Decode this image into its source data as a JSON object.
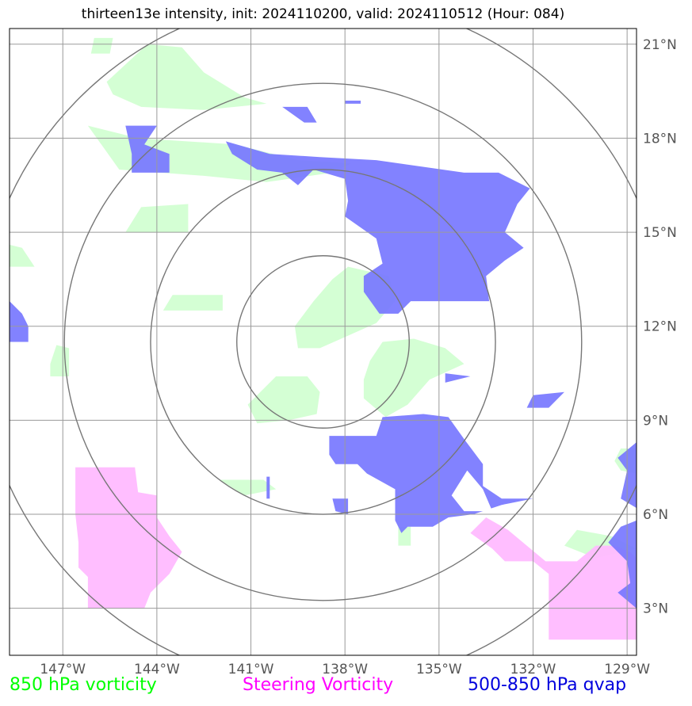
{
  "title": "thirteen13e intensity, init: 2024110200, valid: 2024110512 (Hour: 084)",
  "map": {
    "lon_range": [
      -148.7,
      -128.7
    ],
    "lat_range": [
      1.5,
      21.5
    ],
    "lon_ticks": [
      {
        "value": -147,
        "label": "147°W"
      },
      {
        "value": -144,
        "label": "144°W"
      },
      {
        "value": -141,
        "label": "141°W"
      },
      {
        "value": -138,
        "label": "138°W"
      },
      {
        "value": -135,
        "label": "135°W"
      },
      {
        "value": -132,
        "label": "132°W"
      },
      {
        "value": -129,
        "label": "129°W"
      }
    ],
    "lat_ticks": [
      {
        "value": 3,
        "label": "3°N"
      },
      {
        "value": 6,
        "label": "6°N"
      },
      {
        "value": 9,
        "label": "9°N"
      },
      {
        "value": 12,
        "label": "12°N"
      },
      {
        "value": 15,
        "label": "15°N"
      },
      {
        "value": 18,
        "label": "18°N"
      },
      {
        "value": 21,
        "label": "21°N"
      }
    ],
    "range_rings": {
      "center_lon": -138.7,
      "center_lat": 11.5,
      "radii_deg": [
        2.75,
        5.5,
        8.25,
        11.0
      ]
    },
    "gridlines": true
  },
  "fields": {
    "vorticity_850": {
      "color": "#ccffcc",
      "polygons": [
        [
          [
            -146.0,
            21.2
          ],
          [
            -145.4,
            21.2
          ],
          [
            -145.5,
            20.7
          ],
          [
            -146.1,
            20.7
          ]
        ],
        [
          [
            -145.6,
            19.8
          ],
          [
            -144.3,
            21.0
          ],
          [
            -143.2,
            20.9
          ],
          [
            -142.5,
            20.1
          ],
          [
            -141.2,
            19.3
          ],
          [
            -140.5,
            19.1
          ],
          [
            -142.5,
            18.9
          ],
          [
            -144.5,
            19.0
          ],
          [
            -145.4,
            19.4
          ]
        ],
        [
          [
            -146.2,
            18.4
          ],
          [
            -144.6,
            18.0
          ],
          [
            -141.5,
            17.8
          ],
          [
            -139.5,
            17.3
          ],
          [
            -137.8,
            17.2
          ],
          [
            -138.4,
            16.9
          ],
          [
            -140.5,
            16.6
          ],
          [
            -142.5,
            16.8
          ],
          [
            -145.2,
            17.0
          ]
        ],
        [
          [
            -144.5,
            15.8
          ],
          [
            -143.0,
            15.9
          ],
          [
            -143.0,
            15.0
          ],
          [
            -145.0,
            15.0
          ]
        ],
        [
          [
            -148.7,
            14.6
          ],
          [
            -148.3,
            14.5
          ],
          [
            -147.9,
            13.9
          ],
          [
            -148.7,
            13.9
          ]
        ],
        [
          [
            -137.9,
            13.9
          ],
          [
            -136.6,
            13.6
          ],
          [
            -136.4,
            12.8
          ],
          [
            -137.0,
            12.1
          ],
          [
            -137.9,
            11.7
          ],
          [
            -138.8,
            11.3
          ],
          [
            -139.5,
            11.3
          ],
          [
            -139.6,
            12.0
          ],
          [
            -139.0,
            12.8
          ],
          [
            -138.4,
            13.5
          ]
        ],
        [
          [
            -143.5,
            13.0
          ],
          [
            -141.9,
            13.0
          ],
          [
            -141.9,
            12.5
          ],
          [
            -143.8,
            12.5
          ]
        ],
        [
          [
            -147.2,
            11.4
          ],
          [
            -146.8,
            11.3
          ],
          [
            -146.8,
            10.4
          ],
          [
            -147.4,
            10.4
          ],
          [
            -147.4,
            10.8
          ]
        ],
        [
          [
            -136.8,
            11.5
          ],
          [
            -135.8,
            11.6
          ],
          [
            -134.8,
            11.3
          ],
          [
            -134.2,
            10.8
          ],
          [
            -135.3,
            10.3
          ],
          [
            -136.0,
            9.5
          ],
          [
            -136.7,
            9.1
          ],
          [
            -137.4,
            9.7
          ],
          [
            -137.4,
            10.3
          ],
          [
            -137.2,
            10.9
          ]
        ],
        [
          [
            -140.2,
            10.4
          ],
          [
            -139.2,
            10.4
          ],
          [
            -138.8,
            9.9
          ],
          [
            -138.9,
            9.2
          ],
          [
            -139.8,
            9.0
          ],
          [
            -140.8,
            8.9
          ],
          [
            -141.1,
            9.5
          ]
        ],
        [
          [
            -142.0,
            7.1
          ],
          [
            -140.6,
            7.1
          ],
          [
            -140.2,
            6.8
          ],
          [
            -141.2,
            6.6
          ]
        ],
        [
          [
            -129.2,
            8.1
          ],
          [
            -128.7,
            8.1
          ],
          [
            -128.7,
            7.3
          ],
          [
            -129.2,
            7.4
          ],
          [
            -129.4,
            7.7
          ]
        ],
        [
          [
            -136.3,
            5.6
          ],
          [
            -135.9,
            5.6
          ],
          [
            -135.9,
            5.0
          ],
          [
            -136.3,
            5.0
          ]
        ],
        [
          [
            -130.6,
            5.5
          ],
          [
            -129.5,
            5.3
          ],
          [
            -128.7,
            4.9
          ],
          [
            -130.0,
            4.6
          ],
          [
            -131.0,
            5.0
          ]
        ]
      ]
    },
    "steering_vorticity": {
      "color": "#ffbbff",
      "polygons": [
        [
          [
            -146.6,
            7.5
          ],
          [
            -144.7,
            7.5
          ],
          [
            -144.6,
            6.7
          ],
          [
            -144.0,
            6.6
          ],
          [
            -144.0,
            5.9
          ],
          [
            -143.6,
            5.3
          ],
          [
            -143.2,
            4.8
          ],
          [
            -143.6,
            4.1
          ],
          [
            -144.2,
            3.5
          ],
          [
            -144.4,
            3.0
          ],
          [
            -146.2,
            3.0
          ],
          [
            -146.2,
            4.0
          ],
          [
            -146.5,
            4.3
          ],
          [
            -146.5,
            5.1
          ],
          [
            -146.6,
            6.0
          ]
        ],
        [
          [
            -133.5,
            5.9
          ],
          [
            -132.8,
            5.5
          ],
          [
            -132.2,
            5.0
          ],
          [
            -131.6,
            4.5
          ],
          [
            -130.6,
            4.5
          ],
          [
            -130.0,
            5.0
          ],
          [
            -129.4,
            5.0
          ],
          [
            -128.9,
            4.8
          ],
          [
            -128.7,
            4.6
          ],
          [
            -128.7,
            2.0
          ],
          [
            -131.5,
            2.0
          ],
          [
            -131.5,
            4.1
          ],
          [
            -132.0,
            4.5
          ],
          [
            -132.9,
            4.5
          ],
          [
            -133.3,
            4.9
          ],
          [
            -134.0,
            5.4
          ]
        ]
      ]
    },
    "qvap_500_850": {
      "color": "#7777ff",
      "polygons": [
        [
          [
            -140.0,
            19.0
          ],
          [
            -139.2,
            19.0
          ],
          [
            -138.9,
            18.5
          ],
          [
            -139.3,
            18.5
          ]
        ],
        [
          [
            -145.0,
            18.4
          ],
          [
            -144.0,
            18.4
          ],
          [
            -144.4,
            17.8
          ],
          [
            -143.6,
            17.5
          ],
          [
            -143.6,
            16.9
          ],
          [
            -144.8,
            16.9
          ],
          [
            -144.8,
            17.5
          ]
        ],
        [
          [
            -141.8,
            17.9
          ],
          [
            -140.4,
            17.5
          ],
          [
            -138.8,
            17.4
          ],
          [
            -137.0,
            17.3
          ],
          [
            -135.6,
            17.1
          ],
          [
            -134.2,
            16.9
          ],
          [
            -133.1,
            16.9
          ],
          [
            -132.1,
            16.4
          ],
          [
            -132.5,
            15.9
          ],
          [
            -132.9,
            15.0
          ],
          [
            -132.3,
            14.5
          ],
          [
            -132.9,
            14.1
          ],
          [
            -133.5,
            13.6
          ],
          [
            -133.4,
            12.8
          ],
          [
            -135.9,
            12.8
          ],
          [
            -136.3,
            12.4
          ],
          [
            -136.9,
            12.4
          ],
          [
            -137.4,
            13.1
          ],
          [
            -137.4,
            13.6
          ],
          [
            -136.8,
            14.0
          ],
          [
            -137.0,
            14.8
          ],
          [
            -138.0,
            15.5
          ],
          [
            -137.9,
            16.0
          ],
          [
            -138.0,
            16.7
          ],
          [
            -139.0,
            17.0
          ],
          [
            -139.5,
            16.5
          ],
          [
            -140.0,
            16.9
          ],
          [
            -140.8,
            17.0
          ],
          [
            -141.6,
            17.5
          ]
        ],
        [
          [
            -148.7,
            12.8
          ],
          [
            -148.3,
            12.4
          ],
          [
            -148.1,
            12.0
          ],
          [
            -148.1,
            11.5
          ],
          [
            -148.7,
            11.5
          ]
        ],
        [
          [
            -134.8,
            10.5
          ],
          [
            -134.0,
            10.4
          ],
          [
            -134.8,
            10.2
          ]
        ],
        [
          [
            -132.0,
            9.8
          ],
          [
            -131.0,
            9.9
          ],
          [
            -131.5,
            9.4
          ],
          [
            -132.2,
            9.4
          ]
        ],
        [
          [
            -138.5,
            8.5
          ],
          [
            -137.0,
            8.5
          ],
          [
            -136.8,
            9.1
          ],
          [
            -135.5,
            9.2
          ],
          [
            -134.7,
            9.1
          ],
          [
            -134.2,
            8.4
          ],
          [
            -133.6,
            7.6
          ],
          [
            -133.6,
            6.9
          ],
          [
            -133.0,
            6.5
          ],
          [
            -132.0,
            6.5
          ],
          [
            -133.0,
            6.3
          ],
          [
            -133.9,
            6.0
          ],
          [
            -134.7,
            5.9
          ],
          [
            -135.2,
            5.6
          ],
          [
            -136.0,
            5.6
          ],
          [
            -136.2,
            5.4
          ],
          [
            -136.4,
            5.8
          ],
          [
            -136.4,
            6.8
          ],
          [
            -137.3,
            7.3
          ],
          [
            -137.6,
            7.6
          ],
          [
            -138.3,
            7.6
          ],
          [
            -138.5,
            7.9
          ]
        ],
        [
          [
            -138.4,
            6.5
          ],
          [
            -137.9,
            6.5
          ],
          [
            -137.9,
            6.0
          ],
          [
            -138.3,
            6.1
          ]
        ],
        [
          [
            -128.7,
            8.3
          ],
          [
            -128.7,
            6.2
          ],
          [
            -129.2,
            6.5
          ],
          [
            -129.0,
            7.4
          ],
          [
            -129.3,
            7.8
          ]
        ],
        [
          [
            -128.7,
            5.8
          ],
          [
            -129.2,
            5.6
          ],
          [
            -129.6,
            5.1
          ],
          [
            -129.0,
            4.5
          ],
          [
            -128.9,
            3.8
          ],
          [
            -129.3,
            3.5
          ],
          [
            -128.7,
            3.0
          ]
        ],
        [
          [
            -140.5,
            7.2
          ],
          [
            -140.4,
            7.2
          ],
          [
            -140.4,
            6.5
          ],
          [
            -140.5,
            6.5
          ]
        ],
        [
          [
            -138.0,
            19.2
          ],
          [
            -137.5,
            19.2
          ],
          [
            -137.5,
            19.1
          ],
          [
            -138.0,
            19.1
          ]
        ]
      ],
      "holes": [
        [
          [
            -134.6,
            6.6
          ],
          [
            -134.1,
            7.4
          ],
          [
            -133.6,
            6.8
          ],
          [
            -133.3,
            6.1
          ],
          [
            -134.2,
            6.1
          ]
        ]
      ]
    }
  },
  "legend": [
    {
      "label": "850 hPa vorticity",
      "color": "#00ff00"
    },
    {
      "label": "Steering Vorticity",
      "color": "#ff00ff"
    },
    {
      "label": "500-850 hPa qvap",
      "color": "#0000dd"
    }
  ]
}
